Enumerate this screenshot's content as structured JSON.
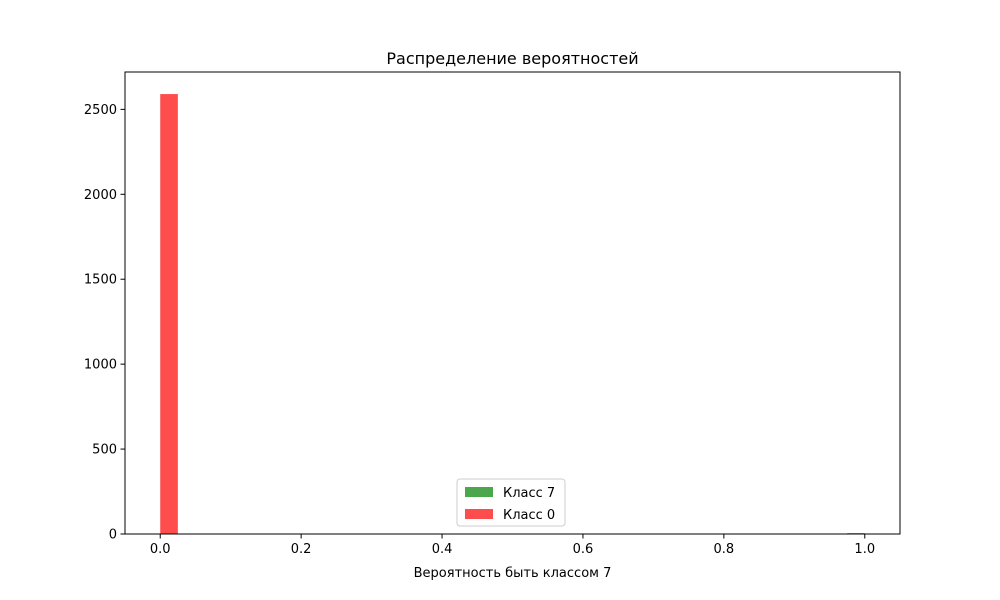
{
  "chart_data": {
    "type": "bar",
    "title": "Распределение вероятностей",
    "xlabel": "Вероятность быть классом 7",
    "ylabel": "",
    "xlim": [
      -0.05,
      1.05
    ],
    "ylim": [
      0,
      2720
    ],
    "xticks": [
      0.0,
      0.2,
      0.4,
      0.6,
      0.8,
      1.0
    ],
    "xtick_labels": [
      "0.0",
      "0.2",
      "0.4",
      "0.6",
      "0.8",
      "1.0"
    ],
    "yticks": [
      0,
      500,
      1000,
      1500,
      2000,
      2500
    ],
    "ytick_labels": [
      "0",
      "500",
      "1000",
      "1500",
      "2000",
      "2500"
    ],
    "grid": false,
    "legend_position": "lower-center",
    "series": [
      {
        "name": "Класс 7",
        "color": "#008000",
        "opacity": 0.7,
        "bins": []
      },
      {
        "name": "Класс 0",
        "color": "#ff0000",
        "opacity": 0.7,
        "bins": [
          {
            "x0": 0.0,
            "x1": 0.025,
            "count": 2590
          },
          {
            "x0": 0.975,
            "x1": 1.0,
            "count": 5
          }
        ]
      }
    ]
  }
}
